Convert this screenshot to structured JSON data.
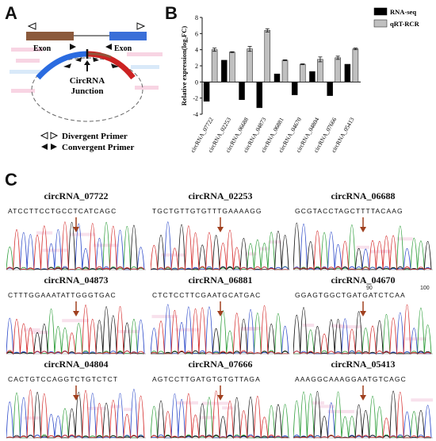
{
  "panels": {
    "a": "A",
    "b": "B",
    "c": "C"
  },
  "diagram": {
    "exon_left": "Exon",
    "exon_right": "Exon",
    "junction_line1": "CircRNA",
    "junction_line2": "Junction",
    "divergent_primer": "Divergent Primer",
    "convergent_primer": "Convergent Primer",
    "colors": {
      "exon_brown": "#8b5a3c",
      "exon_blue": "#3a6fd8",
      "circ_red": "#cc2222",
      "circ_blue": "#2a6be0"
    }
  },
  "chart_data": {
    "type": "bar",
    "categories": [
      "circRNA_07722",
      "circRNA_02253",
      "circRNA_06688",
      "circRNA_04873",
      "circRNA_06881",
      "circRNA_04670",
      "circRNA_04804",
      "circRNA_07666",
      "circRNA_05413"
    ],
    "series": [
      {
        "name": "RNA-seq",
        "color": "#000000",
        "values": [
          -2.4,
          2.7,
          -2.2,
          -3.2,
          1.0,
          -1.6,
          1.3,
          -1.7,
          2.2
        ],
        "errors": [
          0,
          0,
          0,
          0,
          0,
          0,
          0,
          0,
          0
        ]
      },
      {
        "name": "qRT-RCR",
        "color": "#c0c0c0",
        "values": [
          4.0,
          3.7,
          4.1,
          6.4,
          2.7,
          2.2,
          2.8,
          3.0,
          4.1
        ],
        "errors": [
          0.2,
          0.05,
          0.3,
          0.2,
          0.05,
          0.05,
          0.3,
          0.2,
          0.1
        ]
      }
    ],
    "ylabel": "Relative expression(log₂FC)",
    "yticks": [
      "-4",
      "-2",
      "0",
      "2",
      "4",
      "6",
      "8"
    ],
    "ylim": [
      -4,
      8
    ],
    "legend_position": "top-right"
  },
  "traces": [
    {
      "title": "circRNA_07722",
      "seq": "ATCCTTCCTGCCTCATCAGC",
      "num_left": "",
      "num_right": ""
    },
    {
      "title": "circRNA_02253",
      "seq": "TGCTGTTGTGTTTGAAAAGG",
      "num_left": "",
      "num_right": ""
    },
    {
      "title": "circRNA_06688",
      "seq": "GCGTACCTAGCTTTTACAAG",
      "num_left": "",
      "num_right": ""
    },
    {
      "title": "circRNA_04873",
      "seq": "CTTTGGAAATATTGGGTGAC",
      "num_left": "",
      "num_right": ""
    },
    {
      "title": "circRNA_06881",
      "seq": "CTCTCCTTCGAATGCATGAC",
      "num_left": "",
      "num_right": ""
    },
    {
      "title": "circRNA_04670",
      "seq": "GGAGTGGCTGATGATCTCAA",
      "num_left": "90",
      "num_right": "100"
    },
    {
      "title": "circRNA_04804",
      "seq": "CACTGTCCAGGTCTGTCTCT",
      "num_left": "",
      "num_right": ""
    },
    {
      "title": "circRNA_07666",
      "seq": "AGTCCTTGATGTGTGTTAGA",
      "num_left": "",
      "num_right": ""
    },
    {
      "title": "circRNA_05413",
      "seq": "AAAGGCAAAGGAATGTCAGC",
      "num_left": "",
      "num_right": ""
    }
  ]
}
